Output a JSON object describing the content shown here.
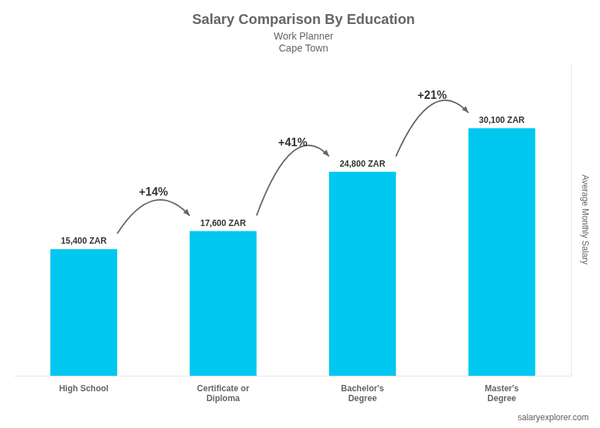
{
  "chart_data": {
    "type": "bar",
    "title": "Salary Comparison By Education",
    "subtitle": [
      "Work Planner",
      "Cape Town"
    ],
    "ylabel": "Average Monthly Salary",
    "categories": [
      "High School",
      "Certificate or\nDiploma",
      "Bachelor's\nDegree",
      "Master's\nDegree"
    ],
    "values": [
      15400,
      17600,
      24800,
      30100
    ],
    "value_labels": [
      "15,400 ZAR",
      "17,600 ZAR",
      "24,800 ZAR",
      "30,100 ZAR"
    ],
    "data_labels": true,
    "annotations": [
      "+14%",
      "+41%",
      "+21%"
    ],
    "source": "salaryexplorer.com",
    "color": "#00C8F0",
    "ylim": [
      0,
      38000
    ],
    "grid": false,
    "tick_labels": "x"
  }
}
